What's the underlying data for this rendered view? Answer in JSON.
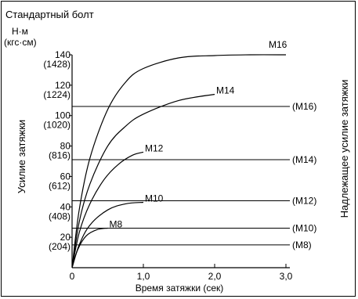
{
  "chart_data": {
    "type": "line",
    "title": "Стандартный болт",
    "unit_top": "Н·м",
    "unit_bottom": "(кгс·см)",
    "xlabel": "Время затяжки (сек)",
    "ylabel": "Усилие затяжки",
    "ylabel_right": "Надлежащее усилие затяжки",
    "xlim": [
      0,
      3.0
    ],
    "ylim": [
      0,
      140
    ],
    "x_ticks": [
      {
        "value": 0,
        "label": "0"
      },
      {
        "value": 1.0,
        "label": "1,0"
      },
      {
        "value": 2.0,
        "label": "2,0"
      },
      {
        "value": 3.0,
        "label": "3,0"
      }
    ],
    "y_ticks": [
      {
        "value": 140,
        "label": "140",
        "sub": "(1428)"
      },
      {
        "value": 120,
        "label": "120",
        "sub": "(1224)"
      },
      {
        "value": 100,
        "label": "100",
        "sub": "(1020)"
      },
      {
        "value": 80,
        "label": "80",
        "sub": "(816)"
      },
      {
        "value": 60,
        "label": "60",
        "sub": "(612)"
      },
      {
        "value": 40,
        "label": "40",
        "sub": "(408)"
      },
      {
        "value": 20,
        "label": "20",
        "sub": "(204)"
      }
    ],
    "series": [
      {
        "name": "M16",
        "x": [
          0,
          0.1,
          0.25,
          0.5,
          0.75,
          1.0,
          1.5,
          2.0,
          2.5,
          3.0
        ],
        "y": [
          0,
          38,
          72,
          104,
          122,
          131,
          138,
          139.5,
          140,
          140
        ]
      },
      {
        "name": "M14",
        "x": [
          0,
          0.1,
          0.25,
          0.5,
          0.75,
          1.0,
          1.5,
          2.0
        ],
        "y": [
          0,
          30,
          55,
          80,
          93,
          101,
          110,
          114
        ]
      },
      {
        "name": "M12",
        "x": [
          0,
          0.1,
          0.25,
          0.45,
          0.65,
          0.85,
          1.0
        ],
        "y": [
          0,
          23,
          42,
          58,
          68,
          74,
          76
        ]
      },
      {
        "name": "M10",
        "x": [
          0,
          0.1,
          0.25,
          0.5,
          0.75,
          1.0
        ],
        "y": [
          0,
          15,
          28,
          38,
          42,
          43
        ]
      },
      {
        "name": "M8",
        "x": [
          0,
          0.08,
          0.2,
          0.35,
          0.5
        ],
        "y": [
          0,
          12,
          21,
          25,
          26
        ]
      }
    ],
    "reference_lines": [
      {
        "label": "(M16)",
        "y": 106
      },
      {
        "label": "(M14)",
        "y": 71
      },
      {
        "label": "(M12)",
        "y": 44
      },
      {
        "label": "(M10)",
        "y": 26
      },
      {
        "label": "(M8)",
        "y": 15
      }
    ]
  }
}
